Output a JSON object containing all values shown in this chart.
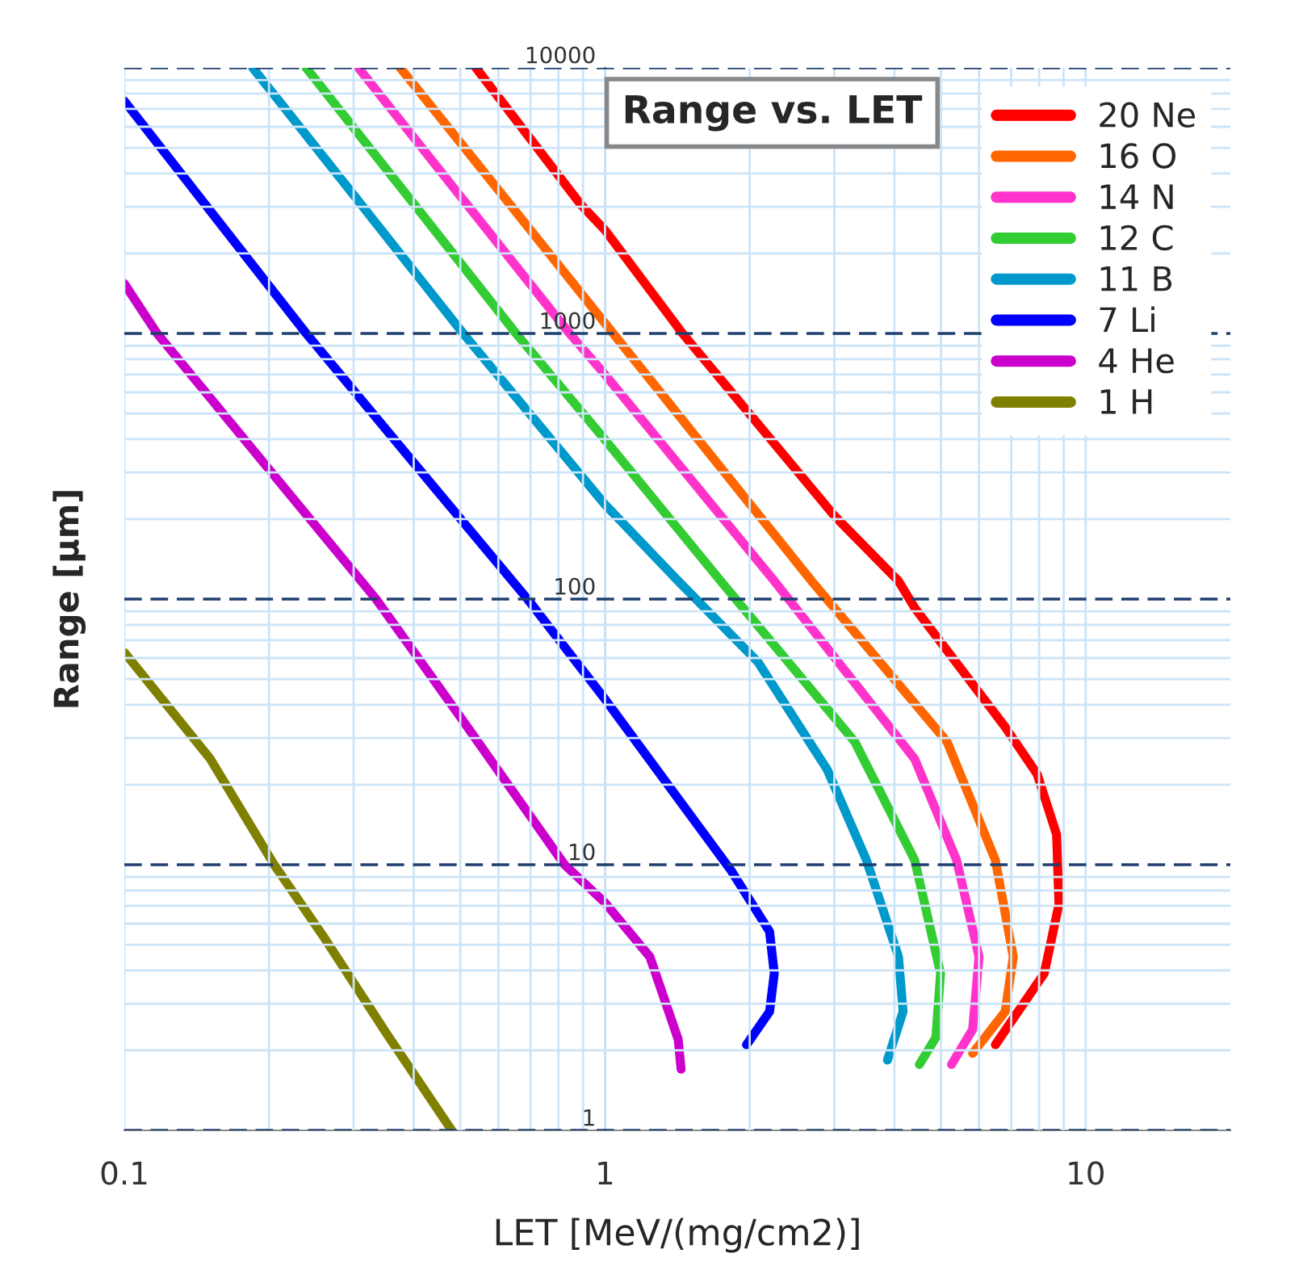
{
  "chart_data": {
    "type": "line",
    "title": "Range vs. LET",
    "xlabel": "LET [MeV/(mg/cm2)]",
    "ylabel": "Range [μm]",
    "log": "xy",
    "xlim": [
      0.1,
      20
    ],
    "ylim": [
      1,
      10000
    ],
    "xticks": [
      0.1,
      1,
      10
    ],
    "yticks": [
      1,
      10,
      100,
      1000,
      10000
    ],
    "grid": true,
    "legend": "top right",
    "marker": "none",
    "line_style": "solid",
    "series": [
      {
        "name": "20 Ne",
        "color": "#ff0000",
        "x": [
          0.539,
          0.89,
          1.0,
          1.45,
          3.0,
          4.08,
          4.41,
          6.8,
          7.93,
          8.7,
          8.8,
          8.2,
          6.49
        ],
        "values": [
          10000,
          3060,
          2450,
          1000,
          206,
          117,
          92.6,
          33,
          21.9,
          13,
          7.1,
          3.9,
          2.1
        ]
      },
      {
        "name": "16 O",
        "color": "#ff6600",
        "x": [
          0.375,
          0.6,
          1.04,
          2.69,
          5.15,
          6.49,
          7.07,
          6.8,
          5.82
        ],
        "values": [
          10000,
          3470,
          1000,
          117,
          29,
          10.4,
          4.5,
          2.8,
          1.95
        ]
      },
      {
        "name": "14 N",
        "color": "#ff33cc",
        "x": [
          0.307,
          0.5,
          0.844,
          1.0,
          2.25,
          4.41,
          5.39,
          6.0,
          5.82,
          5.26
        ],
        "values": [
          10000,
          3290,
          1000,
          700,
          117,
          25,
          10.4,
          4.5,
          2.4,
          1.77
        ]
      },
      {
        "name": "12 C",
        "color": "#33cc33",
        "x": [
          0.239,
          0.4,
          0.653,
          1.0,
          1.74,
          3.31,
          4.41,
          4.99,
          4.88,
          4.51
        ],
        "values": [
          10000,
          3080,
          1000,
          398,
          117,
          29,
          10.4,
          3.9,
          2.24,
          1.77
        ]
      },
      {
        "name": "11 B",
        "color": "#0099cc",
        "x": [
          0.185,
          0.3,
          0.507,
          1.0,
          1.42,
          2.08,
          2.9,
          3.5,
          4.08,
          4.17,
          3.87
        ],
        "values": [
          10000,
          3320,
          1000,
          227,
          117,
          58,
          22.8,
          10.4,
          4.5,
          2.8,
          1.84
        ]
      },
      {
        "name": "7 Li",
        "color": "#0000ff",
        "x": [
          0.1,
          0.239,
          0.4,
          0.69,
          1.0,
          1.83,
          2.2,
          2.25,
          2.2,
          1.97
        ],
        "values": [
          7500,
          1000,
          326,
          100,
          42,
          9.5,
          5.6,
          3.9,
          2.8,
          2.1
        ]
      },
      {
        "name": "4 He",
        "color": "#cc00cc",
        "x": [
          0.1,
          0.117,
          0.2,
          0.334,
          0.5,
          0.824,
          1.0,
          1.24,
          1.42,
          1.44
        ],
        "values": [
          1540,
          1000,
          308,
          100,
          36,
          10,
          7.2,
          4.5,
          2.2,
          1.7
        ]
      },
      {
        "name": "1 H",
        "color": "#808000",
        "x": [
          0.1,
          0.151,
          0.205,
          0.259,
          0.352,
          0.48
        ],
        "values": [
          63,
          25,
          10,
          5.4,
          2.3,
          1
        ]
      }
    ]
  }
}
